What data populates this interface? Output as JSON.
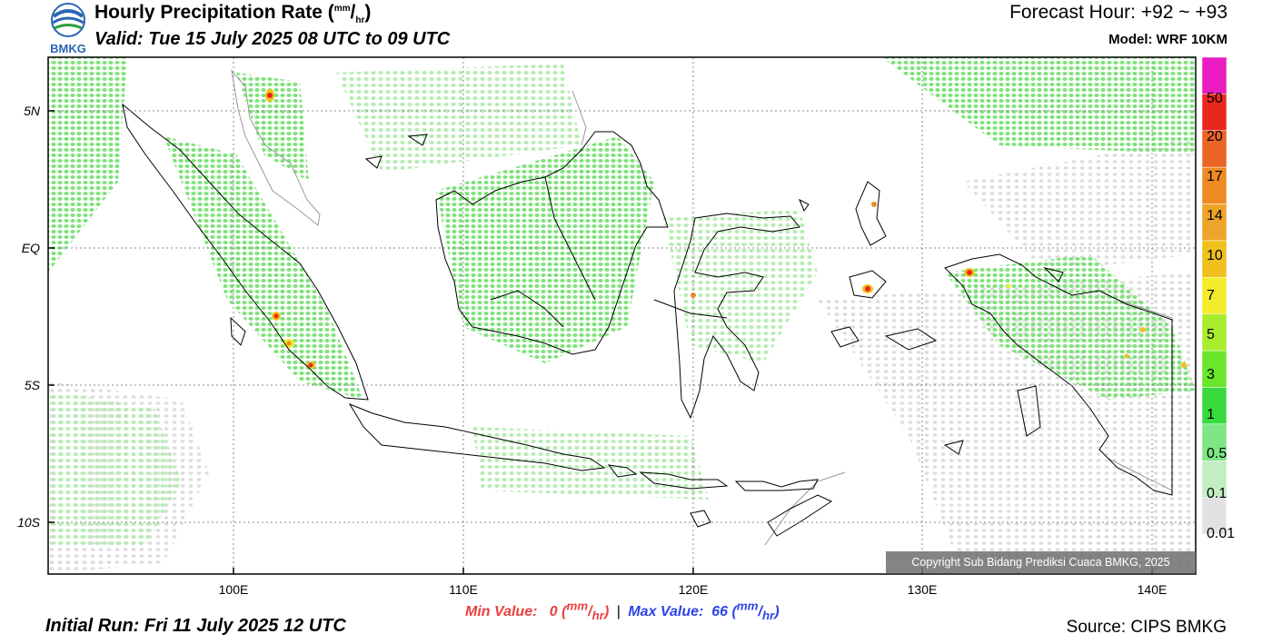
{
  "header": {
    "title_main": "Hourly Precipitation Rate (",
    "title_unit_num": "mm",
    "title_unit_den": "hr",
    "title_close": ")",
    "valid": "Valid: Tue 15 July 2025 08 UTC to 09 UTC",
    "forecast_hour": "Forecast Hour: +92 ~ +93",
    "model": "Model: WRF 10KM",
    "logo_text": "BMKG"
  },
  "map": {
    "lat_labels": [
      "5N",
      "EQ",
      "5S",
      "10S"
    ],
    "lon_labels": [
      "100E",
      "110E",
      "120E",
      "130E",
      "140E"
    ],
    "copyright": "Copyright Sub Bidang Prediksi Cuaca BMKG, 2025",
    "colors": {
      "land_outline": "#000000",
      "neighbor_outline": "#9a9a9a",
      "grid": "#8a8a8a"
    }
  },
  "colorbar": {
    "labels": [
      "50",
      "20",
      "17",
      "14",
      "10",
      "7",
      "5",
      "3",
      "1",
      "0.5",
      "0.1",
      "0.01"
    ],
    "colors": [
      "#ea1cc1",
      "#e8281f",
      "#ea6426",
      "#ee8a22",
      "#eea428",
      "#f0c01e",
      "#f2ec2a",
      "#a8ec2e",
      "#6ae62c",
      "#39da3e",
      "#7ee684",
      "#c2eec2",
      "#e2e2e2"
    ]
  },
  "footer": {
    "min_label": "Min Value:",
    "min_value": "0",
    "sep": "|",
    "max_label": "Max Value:",
    "max_value": "66",
    "unit_num": "mm",
    "unit_den": "hr",
    "initial_run": "Initial Run: Fri 11 July 2025 12 UTC",
    "source": "Source: CIPS BMKG"
  }
}
